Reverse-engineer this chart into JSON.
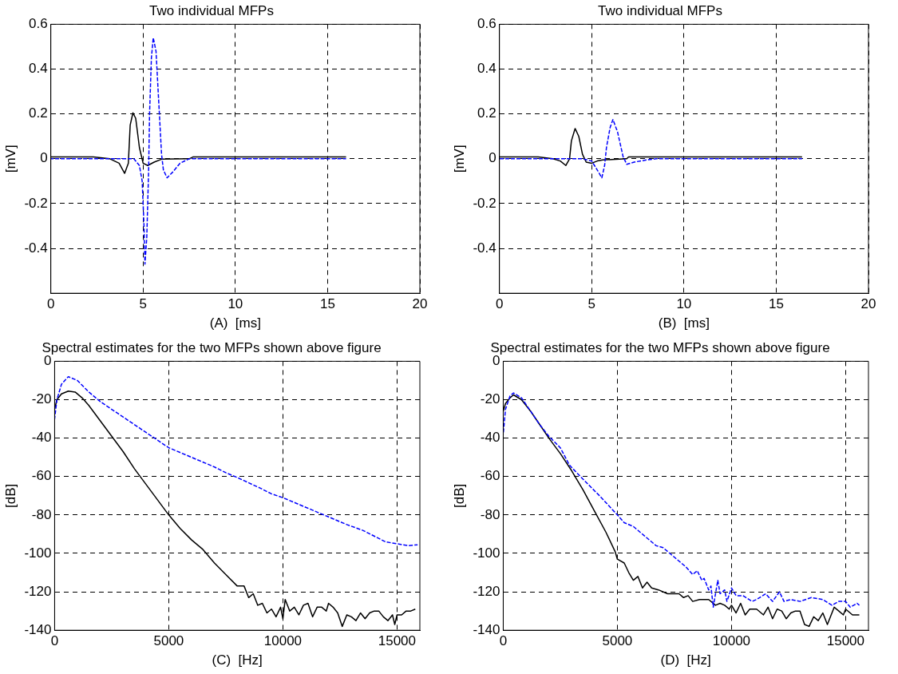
{
  "chart_data": [
    {
      "type": "line",
      "title": "Two individual MFPs",
      "xlabel": "(A)  [ms]",
      "ylabel": "[mV]",
      "xlim": [
        0,
        20
      ],
      "xticks": [
        0,
        5,
        10,
        15,
        20
      ],
      "ylim": [
        -0.6,
        0.6
      ],
      "yticks": [
        -0.4,
        -0.2,
        0,
        0.2,
        0.4,
        0.6
      ],
      "grid": true,
      "marker": "none",
      "series": [
        {
          "color": "#000000",
          "line_style": "solid",
          "x": [
            0,
            2.3,
            3.2,
            3.7,
            4.0,
            4.2,
            4.3,
            4.45,
            4.6,
            4.8,
            5.0,
            5.25,
            5.6,
            6.0,
            7.5,
            7.7,
            16.0
          ],
          "values": [
            0.008,
            0.008,
            0,
            -0.02,
            -0.065,
            -0.02,
            0.15,
            0.205,
            0.18,
            0.05,
            -0.02,
            -0.03,
            -0.015,
            -0.002,
            0,
            0.008,
            0.008
          ]
        },
        {
          "color": "#0000ff",
          "line_style": "dashed",
          "x": [
            0,
            4.5,
            4.8,
            4.95,
            5.05,
            5.1,
            5.2,
            5.3,
            5.35,
            5.45,
            5.55,
            5.7,
            5.85,
            6.0,
            6.1,
            6.3,
            6.6,
            7.0,
            7.5,
            16.0
          ],
          "values": [
            0,
            0,
            -0.03,
            -0.1,
            -0.3,
            -0.47,
            -0.35,
            -0.05,
            0.2,
            0.45,
            0.54,
            0.48,
            0.25,
            0.02,
            -0.05,
            -0.085,
            -0.06,
            -0.02,
            0,
            0
          ]
        }
      ]
    },
    {
      "type": "line",
      "title": "Two individual MFPs",
      "xlabel": "(B)  [ms]",
      "ylabel": "[mV]",
      "xlim": [
        0,
        20
      ],
      "xticks": [
        0,
        5,
        10,
        15,
        20
      ],
      "ylim": [
        -0.6,
        0.6
      ],
      "yticks": [
        -0.4,
        -0.2,
        0,
        0.2,
        0.4,
        0.6
      ],
      "grid": true,
      "marker": "none",
      "series": [
        {
          "color": "#000000",
          "line_style": "solid",
          "x": [
            0,
            2.1,
            2.9,
            3.3,
            3.6,
            3.8,
            3.9,
            4.1,
            4.3,
            4.5,
            4.7,
            5.0,
            5.3,
            5.6,
            6.9,
            7.0,
            16.4
          ],
          "values": [
            0.008,
            0.008,
            0,
            -0.01,
            -0.03,
            0,
            0.08,
            0.135,
            0.1,
            0.02,
            -0.015,
            -0.02,
            -0.01,
            -0.005,
            0,
            0.008,
            0.008
          ]
        },
        {
          "color": "#0000ff",
          "line_style": "dashed",
          "x": [
            0,
            4.5,
            5.0,
            5.3,
            5.55,
            5.7,
            5.8,
            6.0,
            6.15,
            6.4,
            6.7,
            6.9,
            7.3,
            8.0,
            8.5,
            16.4
          ],
          "values": [
            0,
            0,
            -0.01,
            -0.05,
            -0.085,
            -0.03,
            0.05,
            0.14,
            0.175,
            0.12,
            0.01,
            -0.025,
            -0.015,
            -0.005,
            0,
            0
          ]
        }
      ]
    },
    {
      "type": "line",
      "title": "Spectral estimates for the two MFPs shown above figure",
      "xlabel": "(C)  [Hz]",
      "ylabel": "[dB]",
      "xlim": [
        0,
        16000
      ],
      "xticks": [
        0,
        5000,
        10000,
        15000
      ],
      "ylim": [
        -140,
        0
      ],
      "yticks": [
        -140,
        -120,
        -100,
        -80,
        -60,
        -40,
        -20,
        0
      ],
      "grid": true,
      "marker": "none",
      "series": [
        {
          "color": "#000000",
          "line_style": "solid",
          "x": [
            0,
            100,
            300,
            600,
            900,
            1200,
            1500,
            2000,
            2500,
            3000,
            3500,
            4000,
            4500,
            5000,
            5500,
            6000,
            6500,
            7000,
            7500,
            8000,
            8300,
            8500,
            8700,
            8900,
            9100,
            9300,
            9500,
            9700,
            9900,
            10000,
            10100,
            10300,
            10500,
            10700,
            10900,
            11100,
            11300,
            11500,
            11700,
            11900,
            12000,
            12200,
            12400,
            12600,
            12800,
            13000,
            13200,
            13400,
            13600,
            13800,
            14000,
            14200,
            14400,
            14600,
            14800,
            14900,
            15000,
            15200,
            15400,
            15600,
            15800
          ],
          "values": [
            -25,
            -20,
            -17,
            -15.5,
            -16,
            -19,
            -23,
            -31,
            -39,
            -47,
            -56,
            -64,
            -72,
            -80,
            -87,
            -93,
            -98,
            -105,
            -111,
            -117,
            -117,
            -123,
            -121,
            -127,
            -126,
            -131,
            -129,
            -133,
            -128,
            -134,
            -124,
            -130,
            -128,
            -132,
            -127,
            -126,
            -133,
            -128,
            -128,
            -130,
            -126,
            -128,
            -131,
            -138,
            -132,
            -133,
            -135,
            -131,
            -134,
            -131,
            -130,
            -130,
            -133,
            -135,
            -132,
            -137,
            -132,
            -132,
            -130,
            -130,
            -129
          ]
        },
        {
          "color": "#0000ff",
          "line_style": "dashed",
          "x": [
            0,
            100,
            300,
            600,
            1000,
            1500,
            2000,
            2500,
            3000,
            3500,
            4000,
            4500,
            5000,
            6000,
            7000,
            7500,
            8000,
            9000,
            9500,
            10000,
            11000,
            12000,
            12800,
            13500,
            14500,
            15000,
            15500,
            15900
          ],
          "values": [
            -30,
            -20,
            -12,
            -8,
            -10,
            -16,
            -21,
            -25,
            -29,
            -33,
            -37,
            -41,
            -45,
            -50,
            -55,
            -58,
            -60.5,
            -66,
            -69,
            -71,
            -76,
            -81,
            -85,
            -88,
            -94,
            -95,
            -96,
            -95.5
          ]
        }
      ]
    },
    {
      "type": "line",
      "title": "Spectral estimates for the two MFPs shown above figure",
      "xlabel": "(D)  [Hz]",
      "ylabel": "[dB]",
      "xlim": [
        0,
        16000
      ],
      "xticks": [
        0,
        5000,
        10000,
        15000
      ],
      "ylim": [
        -140,
        0
      ],
      "yticks": [
        -140,
        -120,
        -100,
        -80,
        -60,
        -40,
        -20,
        0
      ],
      "grid": true,
      "marker": "none",
      "series": [
        {
          "color": "#000000",
          "line_style": "solid",
          "x": [
            0,
            100,
            300,
            450,
            800,
            1200,
            1600,
            2000,
            2500,
            3000,
            3500,
            4000,
            4500,
            4900,
            5000,
            5300,
            5500,
            5700,
            5900,
            6100,
            6300,
            6500,
            6800,
            7200,
            7700,
            7900,
            8100,
            8300,
            8600,
            9000,
            9300,
            9500,
            9700,
            9900,
            10000,
            10200,
            10400,
            10600,
            10800,
            11100,
            11400,
            11600,
            11800,
            12000,
            12200,
            12400,
            12600,
            12800,
            13000,
            13200,
            13400,
            13600,
            13800,
            14000,
            14200,
            14500,
            14700,
            14900,
            15000,
            15300,
            15600
          ],
          "values": [
            -26,
            -22,
            -19,
            -17.5,
            -20,
            -26,
            -33,
            -40,
            -48,
            -57,
            -67,
            -78,
            -89,
            -99,
            -103,
            -105,
            -110,
            -114,
            -112,
            -118,
            -115,
            -118,
            -119,
            -121,
            -121,
            -123,
            -122,
            -125,
            -124,
            -124,
            -127,
            -126,
            -127,
            -129,
            -127,
            -131,
            -126,
            -132,
            -129,
            -129,
            -132,
            -128,
            -134,
            -129,
            -130,
            -134,
            -131,
            -130,
            -130,
            -137,
            -138,
            -133,
            -135,
            -131,
            -137,
            -128,
            -130,
            -132,
            -129,
            -132,
            -132
          ]
        },
        {
          "color": "#0000ff",
          "line_style": "dashed",
          "x": [
            0,
            100,
            300,
            450,
            800,
            1200,
            1600,
            2000,
            2500,
            2900,
            3300,
            3800,
            4300,
            5000,
            5300,
            5700,
            6200,
            6700,
            7000,
            7500,
            8000,
            8300,
            8500,
            8700,
            8800,
            9000,
            9100,
            9200,
            9400,
            9500,
            9700,
            9800,
            10000,
            10200,
            10500,
            10900,
            11100,
            11500,
            11800,
            12100,
            12300,
            12600,
            13000,
            13500,
            14000,
            14400,
            14700,
            15000,
            15200,
            15500,
            15600
          ],
          "values": [
            -38,
            -25,
            -18,
            -16.5,
            -19,
            -26,
            -33,
            -39,
            -45,
            -54,
            -59,
            -65,
            -71,
            -80,
            -84,
            -86,
            -91,
            -96,
            -97,
            -102,
            -107,
            -111,
            -109,
            -114,
            -113,
            -119,
            -117,
            -128,
            -114,
            -121,
            -119,
            -125,
            -118,
            -122,
            -122,
            -125,
            -124,
            -121,
            -125,
            -120,
            -125,
            -124,
            -125,
            -123,
            -124,
            -127,
            -125,
            -125,
            -128,
            -126,
            -127
          ]
        }
      ]
    }
  ]
}
